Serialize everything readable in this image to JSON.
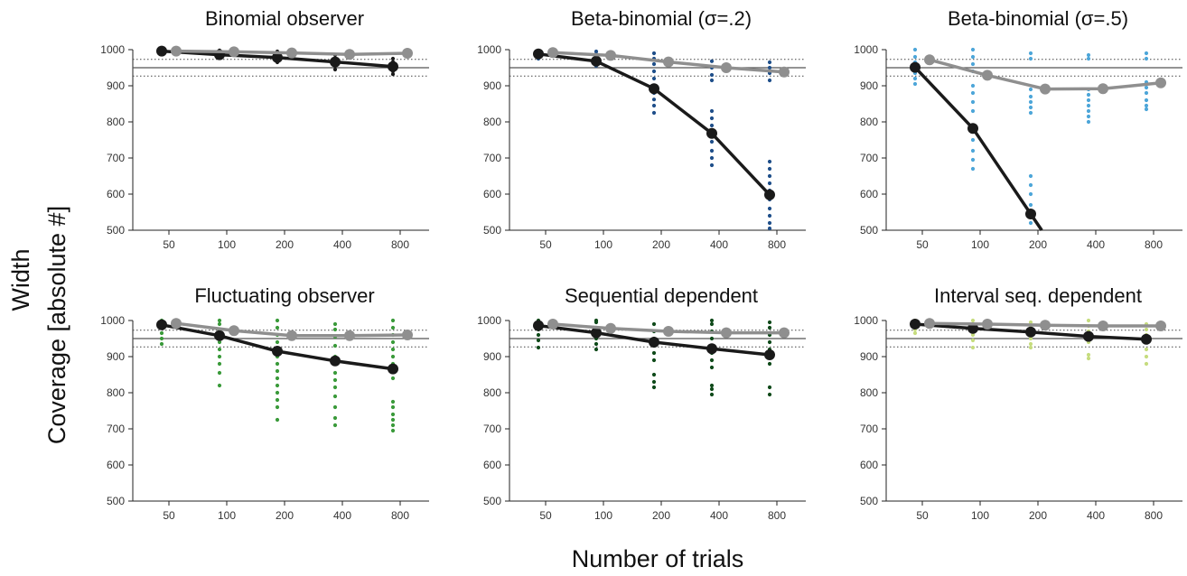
{
  "figure": {
    "xlabel": "Number of trials",
    "ylabel_outer": "Width",
    "ylabel_inner": "Coverage [absolute #]",
    "colors": {
      "main_line": "#1a1a1a",
      "alt_line": "#8f8f8f",
      "reference_line": "#555555"
    }
  },
  "chart_data": [
    {
      "type": "line",
      "title": "Binomial observer",
      "scatter_color": "#1a1a1a",
      "categories": [
        "50",
        "100",
        "200",
        "400",
        "800"
      ],
      "ylim": [
        500,
        1000
      ],
      "yticks": [
        500,
        600,
        700,
        800,
        900,
        1000
      ],
      "reference_lines": {
        "solid": 950,
        "dotted": [
          927,
          973
        ]
      },
      "series": [
        {
          "values": [
            996,
            986,
            978,
            966,
            953
          ]
        },
        {
          "values": [
            996,
            994,
            991,
            987,
            990
          ]
        }
      ],
      "scatter": [
        [
          990,
          996,
          1000
        ],
        [
          978,
          985,
          992,
          998
        ],
        [
          965,
          972,
          980,
          988,
          995
        ],
        [
          945,
          955,
          965,
          975,
          985
        ],
        [
          932,
          940,
          948,
          958,
          966,
          975
        ]
      ]
    },
    {
      "type": "line",
      "title": "Beta-binomial (σ=.2)",
      "scatter_color": "#1f4f8a",
      "categories": [
        "50",
        "100",
        "200",
        "400",
        "800"
      ],
      "ylim": [
        500,
        1000
      ],
      "yticks": [
        500,
        600,
        700,
        800,
        900,
        1000
      ],
      "reference_lines": {
        "solid": 950,
        "dotted": [
          927,
          973
        ]
      },
      "series": [
        {
          "values": [
            988,
            968,
            892,
            768,
            598
          ]
        },
        {
          "values": [
            992,
            984,
            966,
            950,
            938
          ]
        }
      ],
      "scatter": [
        [
          975,
          982,
          990,
          996
        ],
        [
          955,
          963,
          972,
          980,
          988,
          995
        ],
        [
          825,
          845,
          862,
          880,
          900,
          920,
          940,
          960,
          975,
          990
        ],
        [
          680,
          700,
          720,
          745,
          770,
          790,
          810,
          830,
          915,
          930,
          950,
          968
        ],
        [
          505,
          520,
          540,
          560,
          585,
          610,
          630,
          650,
          670,
          690,
          915,
          935,
          950,
          965
        ]
      ]
    },
    {
      "type": "line",
      "title": "Beta-binomial (σ=.5)",
      "scatter_color": "#4da6d9",
      "categories": [
        "50",
        "100",
        "200",
        "400",
        "800"
      ],
      "ylim": [
        500,
        1000
      ],
      "yticks": [
        500,
        600,
        700,
        800,
        900,
        1000
      ],
      "reference_lines": {
        "solid": 950,
        "dotted": [
          927,
          973
        ]
      },
      "series": [
        {
          "values": [
            951,
            782,
            545,
            null,
            null
          ]
        },
        {
          "values": [
            972,
            929,
            891,
            892,
            908
          ]
        }
      ],
      "scatter": [
        [
          905,
          920,
          935,
          950,
          965,
          980,
          1000
        ],
        [
          670,
          695,
          720,
          750,
          780,
          830,
          855,
          880,
          900,
          940,
          960,
          980,
          1000
        ],
        [
          520,
          545,
          570,
          600,
          625,
          650,
          825,
          840,
          855,
          870,
          890,
          975,
          990
        ],
        [
          800,
          815,
          830,
          845,
          860,
          875,
          890,
          975,
          985
        ],
        [
          835,
          845,
          860,
          880,
          895,
          910,
          975,
          990
        ]
      ]
    },
    {
      "type": "line",
      "title": "Fluctuating observer",
      "scatter_color": "#3a9a3a",
      "categories": [
        "50",
        "100",
        "200",
        "400",
        "800"
      ],
      "ylim": [
        500,
        1000
      ],
      "yticks": [
        500,
        600,
        700,
        800,
        900,
        1000
      ],
      "reference_lines": {
        "solid": 950,
        "dotted": [
          927,
          973
        ]
      },
      "series": [
        {
          "values": [
            988,
            958,
            915,
            888,
            866
          ]
        },
        {
          "values": [
            992,
            972,
            958,
            958,
            960
          ]
        }
      ],
      "scatter": [
        [
          935,
          950,
          965,
          980,
          995,
          1000
        ],
        [
          820,
          855,
          880,
          900,
          920,
          940,
          960,
          975,
          990,
          1000
        ],
        [
          725,
          760,
          780,
          800,
          820,
          840,
          860,
          880,
          900,
          920,
          940,
          960,
          980,
          1000
        ],
        [
          710,
          730,
          760,
          790,
          815,
          835,
          855,
          880,
          900,
          930,
          955,
          975,
          990
        ],
        [
          695,
          710,
          725,
          740,
          760,
          775,
          840,
          860,
          880,
          900,
          920,
          940,
          960,
          980,
          1000
        ]
      ]
    },
    {
      "type": "line",
      "title": "Sequential dependent",
      "scatter_color": "#0f4a1a",
      "categories": [
        "50",
        "100",
        "200",
        "400",
        "800"
      ],
      "ylim": [
        500,
        1000
      ],
      "yticks": [
        500,
        600,
        700,
        800,
        900,
        1000
      ],
      "reference_lines": {
        "solid": 950,
        "dotted": [
          927,
          973
        ]
      },
      "series": [
        {
          "values": [
            986,
            966,
            940,
            922,
            905
          ]
        },
        {
          "values": [
            990,
            978,
            970,
            966,
            966
          ]
        }
      ],
      "scatter": [
        [
          925,
          945,
          960,
          975,
          990,
          1000
        ],
        [
          920,
          935,
          950,
          965,
          980,
          995,
          1000
        ],
        [
          815,
          830,
          850,
          890,
          910,
          930,
          950,
          970,
          990
        ],
        [
          795,
          810,
          820,
          870,
          890,
          910,
          930,
          950,
          970,
          990,
          1000
        ],
        [
          795,
          815,
          880,
          900,
          920,
          940,
          960,
          980,
          995
        ]
      ]
    },
    {
      "type": "line",
      "title": "Interval seq. dependent",
      "scatter_color": "#c6dc7e",
      "categories": [
        "50",
        "100",
        "200",
        "400",
        "800"
      ],
      "ylim": [
        500,
        1000
      ],
      "yticks": [
        500,
        600,
        700,
        800,
        900,
        1000
      ],
      "reference_lines": {
        "solid": 950,
        "dotted": [
          927,
          973
        ]
      },
      "series": [
        {
          "values": [
            990,
            978,
            968,
            956,
            948
          ]
        },
        {
          "values": [
            992,
            990,
            987,
            985,
            985
          ]
        }
      ],
      "scatter": [
        [
          965,
          975,
          990,
          1000
        ],
        [
          925,
          945,
          960,
          975,
          990,
          1000
        ],
        [
          925,
          935,
          950,
          965,
          980,
          995
        ],
        [
          895,
          905,
          940,
          955,
          970,
          985,
          1000
        ],
        [
          880,
          900,
          920,
          945,
          960,
          975,
          990
        ]
      ]
    }
  ]
}
